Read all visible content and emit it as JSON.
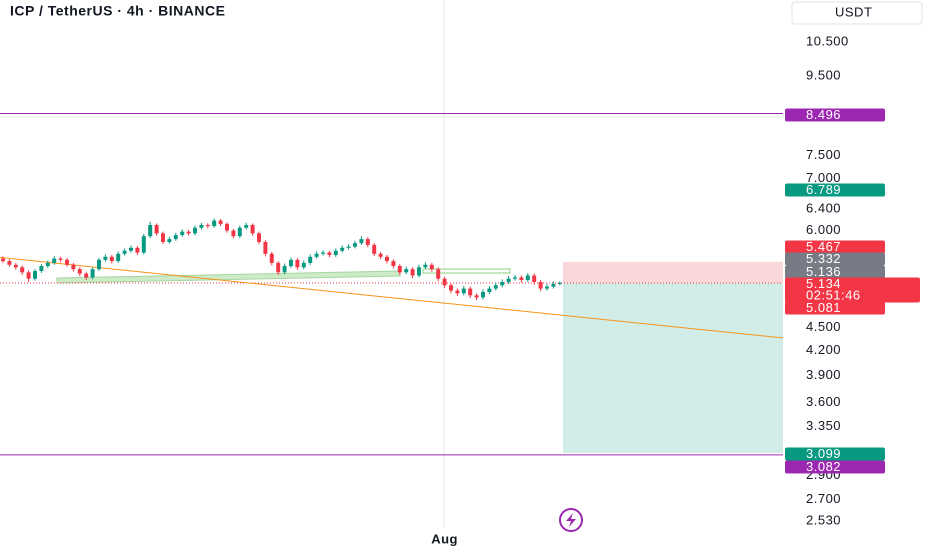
{
  "header": {
    "title": "ICP / TetherUS · 4h · BINANCE",
    "currency": "USDT"
  },
  "chart_data": {
    "type": "candlestick",
    "categories": [
      null,
      null,
      null,
      null,
      null,
      null,
      null,
      null,
      null,
      null,
      null,
      null,
      null,
      null,
      null,
      null,
      null,
      null,
      null,
      null,
      null,
      null,
      null,
      null,
      null,
      null,
      null,
      null,
      null,
      null,
      null,
      null,
      null,
      null,
      null,
      null,
      null,
      null,
      null,
      null,
      null,
      null,
      null,
      null,
      null,
      null,
      null,
      null,
      null,
      null,
      null,
      null,
      null,
      null,
      null,
      null,
      null,
      null,
      null,
      null,
      null,
      null,
      null,
      null,
      null,
      null,
      null,
      null,
      null,
      "Aug",
      null,
      null,
      null,
      null,
      null,
      null,
      null,
      null,
      null,
      null,
      null,
      null,
      null,
      null,
      null,
      null,
      null,
      null
    ],
    "open": [
      5.52,
      5.48,
      5.42,
      5.38,
      5.3,
      5.2,
      5.32,
      5.4,
      5.45,
      5.52,
      5.5,
      5.42,
      5.35,
      5.28,
      5.22,
      5.35,
      5.5,
      5.55,
      5.48,
      5.6,
      5.65,
      5.7,
      5.62,
      5.9,
      6.1,
      5.95,
      5.8,
      5.85,
      5.92,
      5.98,
      5.95,
      6.05,
      6.1,
      6.08,
      6.18,
      6.12,
      6.0,
      5.9,
      6.05,
      6.1,
      5.95,
      5.8,
      5.6,
      5.45,
      5.3,
      5.4,
      5.5,
      5.38,
      5.45,
      5.55,
      5.6,
      5.62,
      5.58,
      5.65,
      5.7,
      5.72,
      5.78,
      5.85,
      5.75,
      5.6,
      5.55,
      5.48,
      5.4,
      5.3,
      5.35,
      5.25,
      5.38,
      5.42,
      5.35,
      5.2,
      5.1,
      5.02,
      4.98,
      5.05,
      4.95,
      4.92,
      5.0,
      5.05,
      5.1,
      5.15,
      5.2,
      5.22,
      5.18,
      5.25,
      5.15,
      5.05,
      5.08,
      5.12
    ],
    "high": [
      5.56,
      5.51,
      5.45,
      5.41,
      5.33,
      5.35,
      5.43,
      5.49,
      5.56,
      5.55,
      5.53,
      5.45,
      5.38,
      5.31,
      5.38,
      5.53,
      5.59,
      5.58,
      5.64,
      5.69,
      5.74,
      5.73,
      5.94,
      6.16,
      6.13,
      5.98,
      5.89,
      5.96,
      6.02,
      6.01,
      6.09,
      6.14,
      6.13,
      6.22,
      6.21,
      6.15,
      6.03,
      6.09,
      6.14,
      6.13,
      5.98,
      5.83,
      5.63,
      5.48,
      5.44,
      5.54,
      5.53,
      5.49,
      5.59,
      5.64,
      5.66,
      5.65,
      5.69,
      5.74,
      5.76,
      5.82,
      5.9,
      5.88,
      5.78,
      5.63,
      5.58,
      5.51,
      5.43,
      5.39,
      5.38,
      5.42,
      5.46,
      5.45,
      5.38,
      5.23,
      5.13,
      5.05,
      5.09,
      5.08,
      4.98,
      5.04,
      5.09,
      5.14,
      5.19,
      5.24,
      5.26,
      5.25,
      5.29,
      5.28,
      5.18,
      5.12,
      5.16,
      5.16
    ],
    "low": [
      5.45,
      5.39,
      5.34,
      5.26,
      5.15,
      5.17,
      5.29,
      5.37,
      5.42,
      5.46,
      5.39,
      5.31,
      5.24,
      5.18,
      5.19,
      5.32,
      5.47,
      5.44,
      5.45,
      5.57,
      5.62,
      5.58,
      5.59,
      5.87,
      5.91,
      5.76,
      5.77,
      5.82,
      5.89,
      5.91,
      5.92,
      6.02,
      6.04,
      6.05,
      6.08,
      5.96,
      5.86,
      5.87,
      6.02,
      5.91,
      5.76,
      5.56,
      5.41,
      5.26,
      5.27,
      5.37,
      5.34,
      5.35,
      5.42,
      5.52,
      5.57,
      5.54,
      5.55,
      5.62,
      5.67,
      5.69,
      5.75,
      5.71,
      5.56,
      5.51,
      5.44,
      5.36,
      5.26,
      5.27,
      5.21,
      5.22,
      5.35,
      5.31,
      5.16,
      5.06,
      4.98,
      4.94,
      4.95,
      4.91,
      4.88,
      4.89,
      4.97,
      5.02,
      5.07,
      5.12,
      5.17,
      5.14,
      5.15,
      5.11,
      5.01,
      5.02,
      5.05,
      5.1
    ],
    "close": [
      5.48,
      5.42,
      5.38,
      5.3,
      5.2,
      5.32,
      5.4,
      5.45,
      5.52,
      5.5,
      5.42,
      5.35,
      5.28,
      5.22,
      5.35,
      5.5,
      5.55,
      5.48,
      5.6,
      5.65,
      5.7,
      5.62,
      5.9,
      6.1,
      5.95,
      5.8,
      5.85,
      5.92,
      5.98,
      5.95,
      6.05,
      6.1,
      6.08,
      6.18,
      6.12,
      6.0,
      5.9,
      6.05,
      6.1,
      5.95,
      5.8,
      5.6,
      5.45,
      5.3,
      5.4,
      5.5,
      5.38,
      5.45,
      5.55,
      5.6,
      5.62,
      5.58,
      5.65,
      5.7,
      5.72,
      5.78,
      5.85,
      5.75,
      5.6,
      5.55,
      5.48,
      5.4,
      5.3,
      5.35,
      5.25,
      5.38,
      5.42,
      5.35,
      5.2,
      5.1,
      5.02,
      4.98,
      5.05,
      4.95,
      4.92,
      5.0,
      5.05,
      5.1,
      5.15,
      5.2,
      5.22,
      5.18,
      5.25,
      5.15,
      5.05,
      5.08,
      5.12,
      5.134
    ],
    "up_color": "#089981",
    "down_color": "#f23645",
    "log_scale": true,
    "ylim": [
      2.48,
      11.9
    ],
    "yticks": [
      {
        "value": 10.5,
        "label": "10.500"
      },
      {
        "value": 9.5,
        "label": "9.500"
      },
      {
        "value": 7.5,
        "label": "7.500"
      },
      {
        "value": 7,
        "label": "7.000"
      },
      {
        "value": 6.4,
        "label": "6.400"
      },
      {
        "value": 6,
        "label": "6.000"
      },
      {
        "value": 4.5,
        "label": "4.500"
      },
      {
        "value": 4.2,
        "label": "4.200"
      },
      {
        "value": 3.9,
        "label": "3.900"
      },
      {
        "value": 3.6,
        "label": "3.600"
      },
      {
        "value": 3.35,
        "label": "3.350"
      },
      {
        "value": 2.9,
        "label": "2.900"
      },
      {
        "value": 2.7,
        "label": "2.700"
      },
      {
        "value": 2.53,
        "label": "2.530"
      }
    ],
    "price_labels": [
      {
        "value": 8.496,
        "color": "#9c27b0"
      },
      {
        "value": 6.789,
        "color": "#089981"
      },
      {
        "value": 5.467,
        "color": "#f23645"
      },
      {
        "value": 5.332,
        "color": "#787b86"
      },
      {
        "value": 5.136,
        "color": "#787b86"
      },
      {
        "value": 5.134,
        "color": "#f23645",
        "countdown": "02:51:46"
      },
      {
        "value": 5.081,
        "color": "#f23645"
      },
      {
        "value": 3.099,
        "color": "#089981"
      },
      {
        "value": 3.082,
        "color": "#9c27b0"
      }
    ],
    "trend_line": {
      "x": [
        -0.5,
        122
      ],
      "values": [
        5.54,
        4.36
      ],
      "color": "#f7931a"
    }
  }
}
